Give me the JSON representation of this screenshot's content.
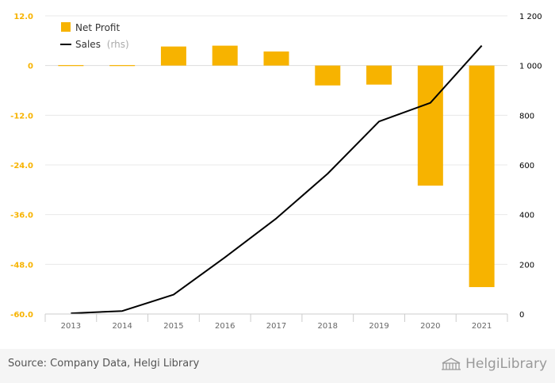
{
  "chart_data": {
    "type": "bar",
    "categories": [
      "2013",
      "2014",
      "2015",
      "2016",
      "2017",
      "2018",
      "2019",
      "2020",
      "2021"
    ],
    "series": [
      {
        "name": "Net Profit",
        "type": "bar",
        "axis": "left",
        "color": "#f7b300",
        "values": [
          0.05,
          0,
          4.6,
          4.8,
          3.4,
          -4.8,
          -4.6,
          -29,
          -53.5
        ]
      },
      {
        "name": "Sales",
        "name_suffix": "(rhs)",
        "type": "line",
        "axis": "right",
        "color": "#000000",
        "values": [
          3,
          12,
          78,
          228,
          385,
          565,
          775,
          850,
          1080
        ]
      }
    ],
    "y_left": {
      "range": [
        -60,
        12
      ],
      "ticks": [
        12,
        0,
        -12,
        -24,
        -36,
        -48,
        -60
      ],
      "tick_labels": [
        "12.0",
        "0",
        "-12.0",
        "-24.0",
        "-36.0",
        "-48.0",
        "-60.0"
      ],
      "label_color": "#f7b300"
    },
    "y_right": {
      "range": [
        0,
        1200
      ],
      "ticks": [
        1200,
        1000,
        800,
        600,
        400,
        200,
        0
      ],
      "tick_labels": [
        "1 200",
        "1 000",
        "800",
        "600",
        "400",
        "200",
        "0"
      ],
      "label_color": "#000000"
    },
    "grid": true,
    "legend_position": "top-left"
  },
  "footer": {
    "source": "Source: Company Data, Helgi Library",
    "brand": "HelgiLibrary"
  }
}
